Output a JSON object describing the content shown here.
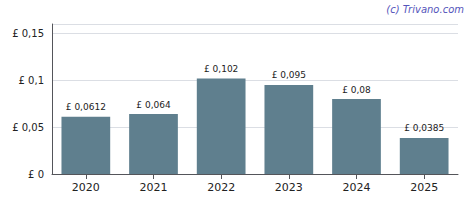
{
  "chart_data": {
    "type": "bar",
    "categories": [
      "2020",
      "2021",
      "2022",
      "2023",
      "2024",
      "2025"
    ],
    "values": [
      0.0612,
      0.064,
      0.102,
      0.095,
      0.08,
      0.0385
    ],
    "value_labels": [
      "£ 0,0612",
      "£ 0,064",
      "£ 0,102",
      "£ 0,095",
      "£ 0,08",
      "£ 0,0385"
    ],
    "data_labels": true,
    "color": "#5f7f8e",
    "ylim": [
      0,
      0.16
    ],
    "yticks": [
      {
        "value": 0,
        "label": "£ 0"
      },
      {
        "value": 0.05,
        "label": "£ 0,05"
      },
      {
        "value": 0.1,
        "label": "£ 0,1"
      },
      {
        "value": 0.15,
        "label": "£ 0,15"
      }
    ],
    "grid": true,
    "annotation": "(c) Trivano.com"
  }
}
